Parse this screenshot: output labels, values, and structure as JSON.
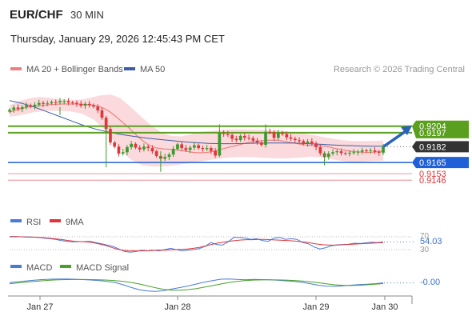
{
  "header": {
    "symbol": "EUR/CHF",
    "timeframe": "30 MIN",
    "datetime": "Thursday, January 29, 2026 12:45:43 PM CET"
  },
  "legend": {
    "ma20": "MA 20 + Bollinger Bands",
    "ma50": "MA 50",
    "copyright": "Research © 2026 Trading Central"
  },
  "colors": {
    "candle_up": "#3a9a2e",
    "candle_down": "#e0363a",
    "ma20": "#f08080",
    "ma50": "#3a5fa8",
    "bollinger_fill": "#f9d3d6",
    "green_level": "#5aa01e",
    "blue_level": "#1f5fd8",
    "red_level": "#f0a0a8",
    "arrow": "#2a62b8"
  },
  "chart_data": [
    {
      "type": "candlestick",
      "y_labels": {
        "resistance_1": "0.9204",
        "resistance_2": "0.9197",
        "last_price": "0.9182",
        "pivot": "0.9165",
        "support_1": "0.9153",
        "support_2": "0.9146"
      },
      "levels": {
        "resistance_1": 0.9204,
        "resistance_2": 0.9197,
        "last_price": 0.9182,
        "pivot": 0.9165,
        "support_1": 0.9153,
        "support_2": 0.9146
      },
      "x_ticks": [
        "Jan 27",
        "Jan 28",
        "Jan 29",
        "Jan 30"
      ],
      "closes": [
        0.92215,
        0.9224,
        0.92225,
        0.92245,
        0.92265,
        0.9225,
        0.9227,
        0.9229,
        0.9228,
        0.92285,
        0.923,
        0.92295,
        0.9231,
        0.9231,
        0.92295,
        0.9229,
        0.9228,
        0.9226,
        0.9228,
        0.92265,
        0.9225,
        0.9221,
        0.9213,
        0.9201,
        0.91865,
        0.9182,
        0.91745,
        0.9176,
        0.91815,
        0.9185,
        0.9181,
        0.9179,
        0.9182,
        0.91805,
        0.9177,
        0.9172,
        0.9169,
        0.9171,
        0.91735,
        0.91795,
        0.91845,
        0.91805,
        0.91785,
        0.9181,
        0.91835,
        0.91805,
        0.91795,
        0.91805,
        0.91775,
        0.91725,
        0.9197,
        0.91955,
        0.91945,
        0.91905,
        0.9189,
        0.91935,
        0.91915,
        0.9191,
        0.91885,
        0.91865,
        0.9184,
        0.9198,
        0.91975,
        0.91915,
        0.9197,
        0.91955,
        0.9192,
        0.91905,
        0.9189,
        0.9188,
        0.9185,
        0.91875,
        0.91855,
        0.91815,
        0.9175,
        0.9171,
        0.91745,
        0.9176,
        0.9177,
        0.9175,
        0.91745,
        0.91755,
        0.9176,
        0.91765,
        0.9178,
        0.91775,
        0.9178,
        0.91765,
        0.91755,
        0.9182
      ],
      "ma20": [
        0.9219,
        0.9221,
        0.92225,
        0.9224,
        0.9225,
        0.92255,
        0.92262,
        0.92268,
        0.92272,
        0.92276,
        0.92278,
        0.92278,
        0.92278,
        0.92277,
        0.92274,
        0.9227,
        0.92262,
        0.92247,
        0.92222,
        0.92185,
        0.9214,
        0.9209,
        0.9204,
        0.91985,
        0.9193,
        0.9188,
        0.9184,
        0.91815,
        0.918,
        0.91795,
        0.91792,
        0.91788,
        0.9178,
        0.91772,
        0.91762,
        0.91755,
        0.91755,
        0.91758,
        0.91768,
        0.91782,
        0.91798,
        0.91812,
        0.91825,
        0.9184,
        0.91855,
        0.91868,
        0.91878,
        0.91884,
        0.91888,
        0.9189,
        0.91888,
        0.91882,
        0.91872,
        0.91862,
        0.91852,
        0.91842,
        0.91835,
        0.9183,
        0.91828,
        0.91825,
        0.91815,
        0.918,
        0.9179,
        0.9178,
        0.9177,
        0.91765,
        0.9176,
        0.91758,
        0.9176,
        0.91765,
        0.9177
      ],
      "ma50": [
        0.92315,
        0.92285,
        0.92245,
        0.92195,
        0.92145,
        0.92095,
        0.92045,
        0.92005,
        0.91975,
        0.9195,
        0.9193,
        0.91912,
        0.91898,
        0.91885,
        0.91872,
        0.91862,
        0.91855,
        0.91852,
        0.91852,
        0.91855,
        0.91858,
        0.9186,
        0.9186,
        0.91858,
        0.91852,
        0.91845,
        0.91838,
        0.91832,
        0.91828,
        0.91825,
        0.91825
      ],
      "bb_upper": [
        0.92265,
        0.9231,
        0.9234,
        0.92355,
        0.92345,
        0.9233,
        0.9232,
        0.92325,
        0.92345,
        0.9237,
        0.9238,
        0.9234,
        0.92245,
        0.92145,
        0.9205,
        0.91975,
        0.91935,
        0.9193,
        0.91955,
        0.9198,
        0.9199,
        0.92,
        0.92005,
        0.92005,
        0.92002,
        0.92,
        0.91995,
        0.9199,
        0.91975,
        0.91962,
        0.91948,
        0.91925,
        0.91905,
        0.9189,
        0.9188,
        0.9188,
        0.9188,
        0.91885
      ],
      "bb_lower": [
        0.9214,
        0.9216,
        0.9219,
        0.92205,
        0.92205,
        0.922,
        0.92175,
        0.9211,
        0.91985,
        0.9182,
        0.91685,
        0.9162,
        0.91605,
        0.9161,
        0.91625,
        0.91645,
        0.91665,
        0.91685,
        0.917,
        0.91708,
        0.9171,
        0.917,
        0.91695,
        0.91695,
        0.91702,
        0.91712,
        0.91702,
        0.91678,
        0.91658,
        0.91655,
        0.91665,
        0.9167
      ],
      "ylim": [
        0.9129,
        0.9245
      ]
    },
    {
      "type": "line",
      "legend": [
        "RSI",
        "9MA"
      ],
      "y_ticks": [
        "70",
        "30"
      ],
      "current_label": "54.03",
      "current_value": 54.03,
      "rsi": [
        71,
        71,
        70,
        70,
        69,
        68,
        66,
        64,
        62,
        58,
        56,
        54,
        55,
        55,
        56,
        52,
        48,
        44,
        40,
        32,
        24,
        22,
        24,
        28,
        26,
        28,
        26,
        30,
        34,
        30,
        26,
        28,
        30,
        33,
        40,
        52,
        46,
        44,
        54,
        68,
        68,
        66,
        62,
        64,
        58,
        56,
        66,
        68,
        62,
        64,
        62,
        52,
        48,
        38,
        32,
        36,
        42,
        45,
        46,
        47,
        50,
        49,
        51,
        53,
        52,
        54
      ],
      "ma9": [
        70,
        70,
        70,
        69,
        69,
        68,
        67,
        65,
        63,
        61,
        58,
        56,
        55,
        54,
        52,
        48,
        44,
        38,
        32,
        28,
        26,
        26,
        26,
        26,
        27,
        28,
        28,
        29,
        30,
        31,
        32,
        34,
        37,
        41,
        46,
        50,
        53,
        56,
        58,
        60,
        61,
        61,
        62,
        62,
        61,
        60,
        59,
        58,
        57,
        55,
        53,
        50,
        47,
        45,
        44,
        44,
        45,
        46,
        47,
        48,
        49,
        50,
        51,
        52
      ],
      "ylim": [
        0,
        100
      ]
    },
    {
      "type": "line",
      "legend": [
        "MACD",
        "MACD Signal"
      ],
      "current_label": "-0.00",
      "current_value": 0.0,
      "macd": [
        0.1,
        0.3,
        0.5,
        0.7,
        0.85,
        0.95,
        1.0,
        1.0,
        0.95,
        0.85,
        0.75,
        0.6,
        0.4,
        0.1,
        -0.5,
        -1.2,
        -1.8,
        -2.1,
        -2.2,
        -2.0,
        -1.6,
        -1.2,
        -0.8,
        -0.3,
        0.2,
        0.6,
        0.95,
        1.0,
        0.9,
        0.8,
        0.9,
        0.85,
        0.8,
        0.7,
        0.55,
        0.4,
        0.15,
        -0.2,
        -0.6,
        -0.85,
        -0.9,
        -0.8,
        -0.6,
        -0.45,
        -0.35,
        -0.2,
        0.0
      ],
      "signal": [
        -0.2,
        0.0,
        0.2,
        0.4,
        0.55,
        0.7,
        0.8,
        0.85,
        0.88,
        0.88,
        0.85,
        0.8,
        0.72,
        0.6,
        0.4,
        0.1,
        -0.3,
        -0.8,
        -1.3,
        -1.7,
        -1.9,
        -1.9,
        -1.75,
        -1.5,
        -1.1,
        -0.7,
        -0.3,
        0.1,
        0.4,
        0.6,
        0.72,
        0.78,
        0.8,
        0.78,
        0.72,
        0.62,
        0.48,
        0.3,
        0.05,
        -0.25,
        -0.5,
        -0.62,
        -0.68,
        -0.62,
        -0.5,
        -0.35,
        -0.18
      ],
      "ylim": [
        -3,
        2
      ]
    }
  ]
}
